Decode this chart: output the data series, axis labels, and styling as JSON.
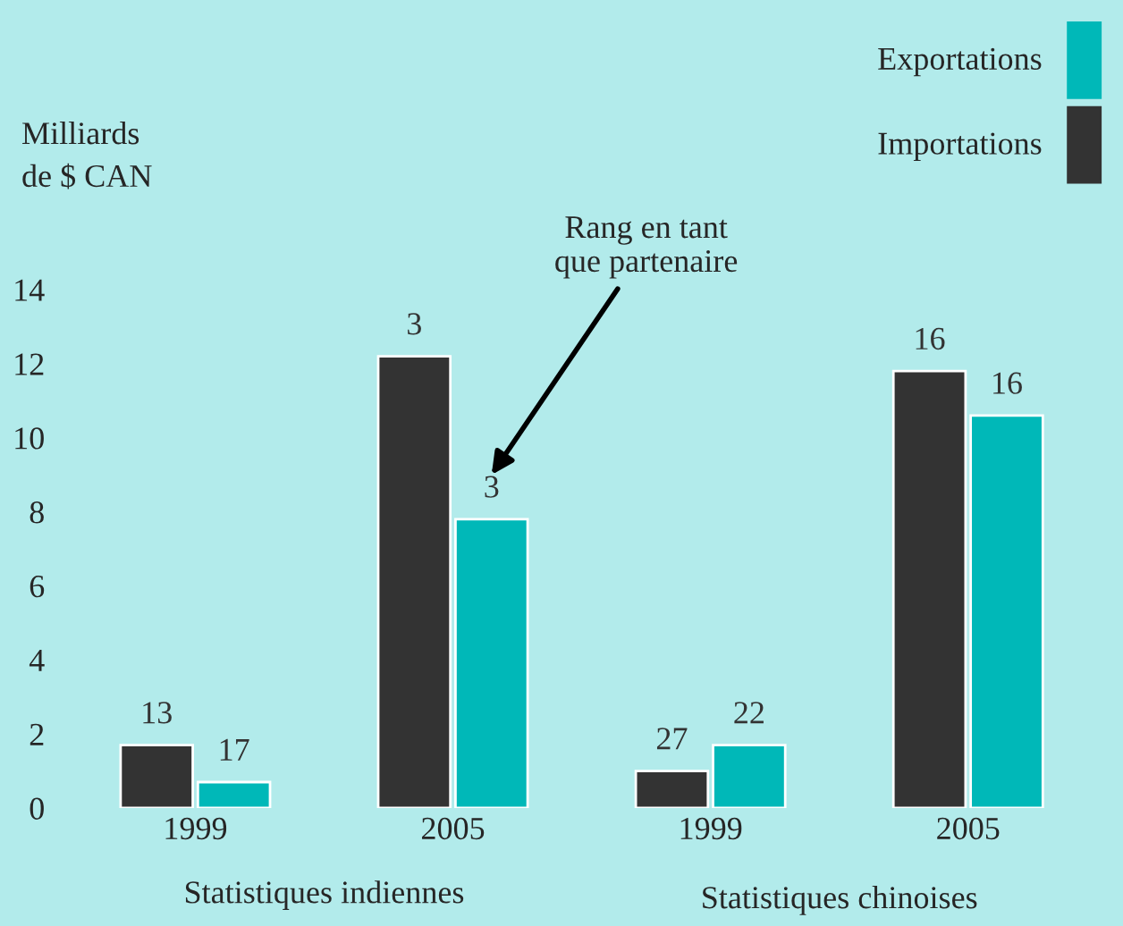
{
  "chart_data": {
    "type": "bar",
    "ylabel": "Milliards\nde $ CAN",
    "categories": [
      "1999",
      "2005",
      "1999",
      "2005"
    ],
    "series": [
      {
        "name": "Importations",
        "color": "#333333",
        "values": [
          1.7,
          12.2,
          1.0,
          11.8
        ]
      },
      {
        "name": "Exportations",
        "color": "#00b8b8",
        "values": [
          0.7,
          7.8,
          1.7,
          10.6
        ]
      }
    ],
    "ylim": [
      0,
      14
    ],
    "yticks": [
      0,
      2,
      4,
      6,
      8,
      10,
      12,
      14
    ],
    "grid": false,
    "legend": "top right",
    "annotations": [
      "Rang en tant\nque partenaire",
      "Statistiques indiennes",
      "Statistiques chinoises",
      "13",
      "3",
      "27",
      "16",
      "17",
      "3",
      "22",
      "16"
    ]
  }
}
